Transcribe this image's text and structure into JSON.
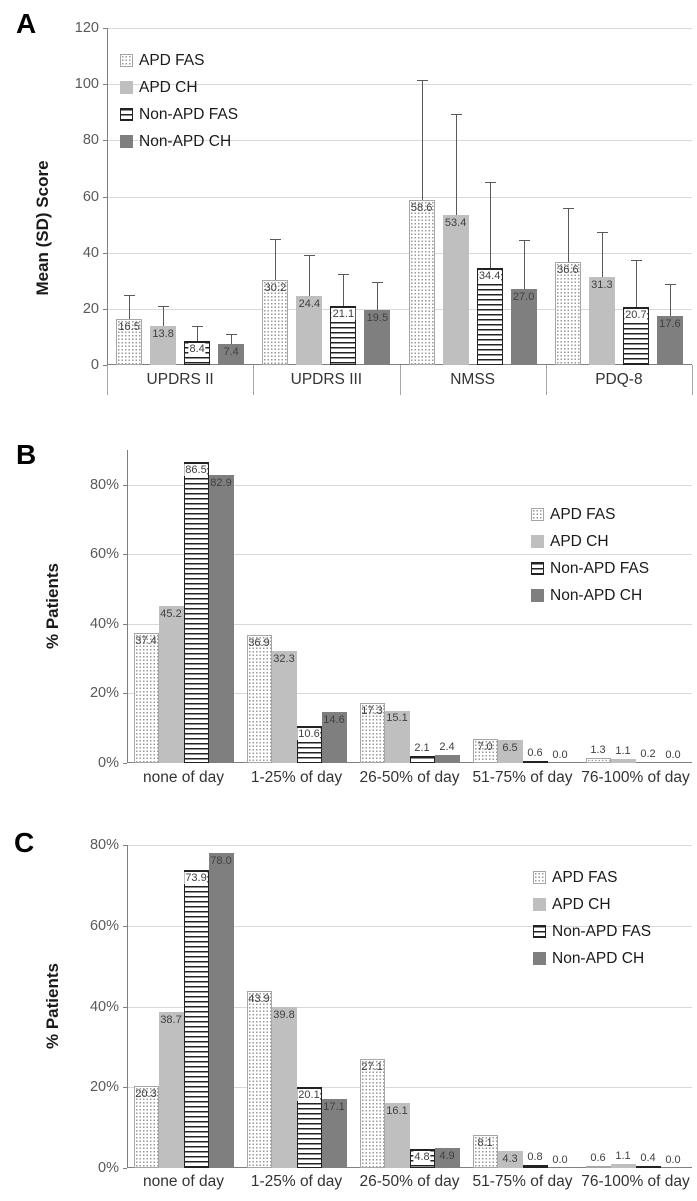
{
  "figure": {
    "panels": [
      {
        "id": "A",
        "label": "A",
        "ylabel": "Mean (SD) Score"
      },
      {
        "id": "B",
        "label": "B",
        "ylabel": "% Patients"
      },
      {
        "id": "C",
        "label": "C",
        "ylabel": "% Patients"
      }
    ]
  },
  "colors": {
    "apd_ch_bar": "#bfbfbf",
    "non_apd_ch_bar": "#7f7f7f",
    "stripe_pattern": "#222222",
    "dot_pattern": "#999999",
    "gridline": "#d9d9d9",
    "axis_line": "#808080",
    "error_bar": "#595959",
    "value_label": "#404040",
    "tick_label": "#595959"
  },
  "chart_data": [
    {
      "type": "bar",
      "panel": "A",
      "title": "",
      "xlabel": "",
      "ylabel": "Mean (SD) Score",
      "ylim": [
        0,
        120
      ],
      "ytick_interval": 20,
      "ytick_labels": [
        "0",
        "20",
        "40",
        "60",
        "80",
        "100",
        "120"
      ],
      "grid": true,
      "error_bars": true,
      "category_separators": true,
      "legend_position": "top-left-inside",
      "categories": [
        "UPDRS II",
        "UPDRS III",
        "NMSS",
        "PDQ-8"
      ],
      "series": [
        {
          "name": "APD FAS",
          "pattern": "dots",
          "values": [
            16.5,
            30.2,
            58.6,
            36.6
          ],
          "labels": [
            "16.5",
            "30.2",
            "58.6",
            "36.6"
          ],
          "error_tops": [
            25,
            45,
            101.5,
            56
          ]
        },
        {
          "name": "APD CH",
          "pattern": "solid-light",
          "values": [
            13.8,
            24.4,
            53.4,
            31.3
          ],
          "labels": [
            "13.8",
            "24.4",
            "53.4",
            "31.3"
          ],
          "error_tops": [
            21,
            39,
            89.5,
            47.5
          ]
        },
        {
          "name": "Non-APD FAS",
          "pattern": "hlines",
          "values": [
            8.4,
            21.1,
            34.4,
            20.7
          ],
          "labels": [
            "8.4",
            "21.1",
            "34.4",
            "20.7"
          ],
          "error_tops": [
            14,
            32.5,
            65,
            37.5
          ]
        },
        {
          "name": "Non-APD CH",
          "pattern": "solid-dark",
          "values": [
            7.4,
            19.5,
            27.0,
            17.6
          ],
          "labels": [
            "7.4",
            "19.5",
            "27.0",
            "17.6"
          ],
          "error_tops": [
            11,
            29.5,
            44.5,
            29
          ]
        }
      ]
    },
    {
      "type": "bar",
      "panel": "B",
      "title": "",
      "xlabel": "",
      "ylabel": "% Patients",
      "ylim": [
        0,
        90
      ],
      "ytick_interval": 20,
      "ytick_labels": [
        "0%",
        "20%",
        "40%",
        "60%",
        "80%"
      ],
      "grid": true,
      "error_bars": false,
      "category_separators": false,
      "legend_position": "right-inside",
      "categories": [
        "none of day",
        "1-25% of day",
        "26-50% of day",
        "51-75% of day",
        "76-100% of day"
      ],
      "series": [
        {
          "name": "APD FAS",
          "pattern": "dots",
          "values": [
            37.4,
            36.9,
            17.3,
            7.0,
            1.3
          ],
          "labels": [
            "37.4",
            "36.9",
            "17.3",
            "7.0",
            "1.3"
          ]
        },
        {
          "name": "APD CH",
          "pattern": "solid-light",
          "values": [
            45.2,
            32.3,
            15.1,
            6.5,
            1.1
          ],
          "labels": [
            "45.2",
            "32.3",
            "15.1",
            "6.5",
            "1.1"
          ]
        },
        {
          "name": "Non-APD FAS",
          "pattern": "hlines",
          "values": [
            86.5,
            10.6,
            2.1,
            0.6,
            0.2
          ],
          "labels": [
            "86.5",
            "10.6",
            "2.1",
            "0.6",
            "0.2"
          ]
        },
        {
          "name": "Non-APD CH",
          "pattern": "solid-dark",
          "values": [
            82.9,
            14.6,
            2.4,
            0.0,
            0.0
          ],
          "labels": [
            "82.9",
            "14.6",
            "2.4",
            "0.0",
            "0.0"
          ]
        }
      ]
    },
    {
      "type": "bar",
      "panel": "C",
      "title": "",
      "xlabel": "",
      "ylabel": "% Patients",
      "ylim": [
        0,
        80
      ],
      "ytick_interval": 20,
      "ytick_labels": [
        "0%",
        "20%",
        "40%",
        "60%",
        "80%"
      ],
      "grid": true,
      "error_bars": false,
      "category_separators": false,
      "legend_position": "right-inside",
      "categories": [
        "none of day",
        "1-25% of day",
        "26-50% of day",
        "51-75% of day",
        "76-100% of day"
      ],
      "series": [
        {
          "name": "APD FAS",
          "pattern": "dots",
          "values": [
            20.3,
            43.9,
            27.1,
            8.1,
            0.6
          ],
          "labels": [
            "20.3",
            "43.9",
            "27.1",
            "8.1",
            "0.6"
          ]
        },
        {
          "name": "APD CH",
          "pattern": "solid-light",
          "values": [
            38.7,
            39.8,
            16.1,
            4.3,
            1.1
          ],
          "labels": [
            "38.7",
            "39.8",
            "16.1",
            "4.3",
            "1.1"
          ]
        },
        {
          "name": "Non-APD FAS",
          "pattern": "hlines",
          "values": [
            73.9,
            20.1,
            4.8,
            0.8,
            0.4
          ],
          "labels": [
            "73.9",
            "20.1",
            "4.8",
            "0.8",
            "0.4"
          ]
        },
        {
          "name": "Non-APD CH",
          "pattern": "solid-dark",
          "values": [
            78.0,
            17.1,
            4.9,
            0.0,
            0.0
          ],
          "labels": [
            "78.0",
            "17.1",
            "4.9",
            "0.0",
            "0.0"
          ]
        }
      ]
    }
  ]
}
